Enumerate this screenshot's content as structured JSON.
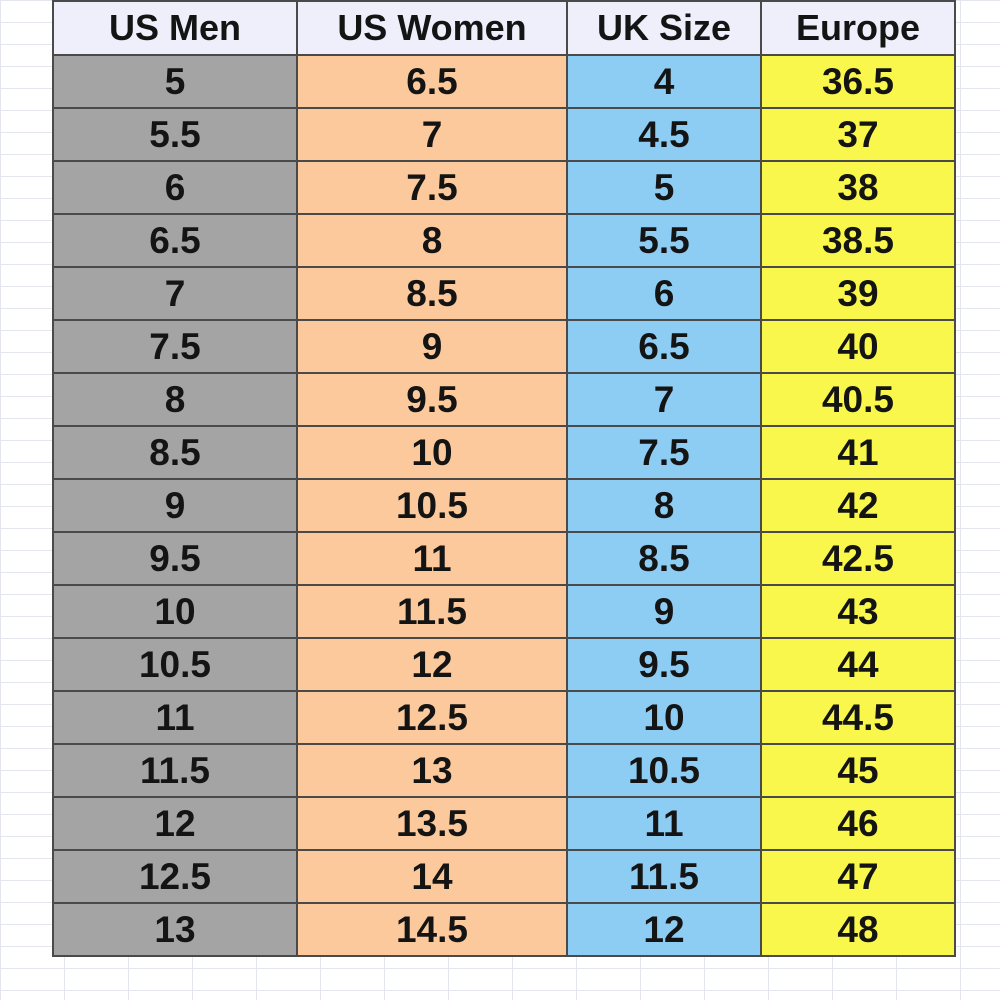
{
  "colors": {
    "header_bg": "#eeeffb",
    "us_men_bg": "#a4a4a4",
    "us_women_bg": "#fbc99c",
    "uk_bg": "#8ecdf3",
    "europe_bg": "#f9f74c",
    "border": "#4a4a4a"
  },
  "table": {
    "headers": [
      "US Men",
      "US Women",
      "UK Size",
      "Europe"
    ],
    "rows": [
      [
        "5",
        "6.5",
        "4",
        "36.5"
      ],
      [
        "5.5",
        "7",
        "4.5",
        "37"
      ],
      [
        "6",
        "7.5",
        "5",
        "38"
      ],
      [
        "6.5",
        "8",
        "5.5",
        "38.5"
      ],
      [
        "7",
        "8.5",
        "6",
        "39"
      ],
      [
        "7.5",
        "9",
        "6.5",
        "40"
      ],
      [
        "8",
        "9.5",
        "7",
        "40.5"
      ],
      [
        "8.5",
        "10",
        "7.5",
        "41"
      ],
      [
        "9",
        "10.5",
        "8",
        "42"
      ],
      [
        "9.5",
        "11",
        "8.5",
        "42.5"
      ],
      [
        "10",
        "11.5",
        "9",
        "43"
      ],
      [
        "10.5",
        "12",
        "9.5",
        "44"
      ],
      [
        "11",
        "12.5",
        "10",
        "44.5"
      ],
      [
        "11.5",
        "13",
        "10.5",
        "45"
      ],
      [
        "12",
        "13.5",
        "11",
        "46"
      ],
      [
        "12.5",
        "14",
        "11.5",
        "47"
      ],
      [
        "13",
        "14.5",
        "12",
        "48"
      ]
    ]
  }
}
